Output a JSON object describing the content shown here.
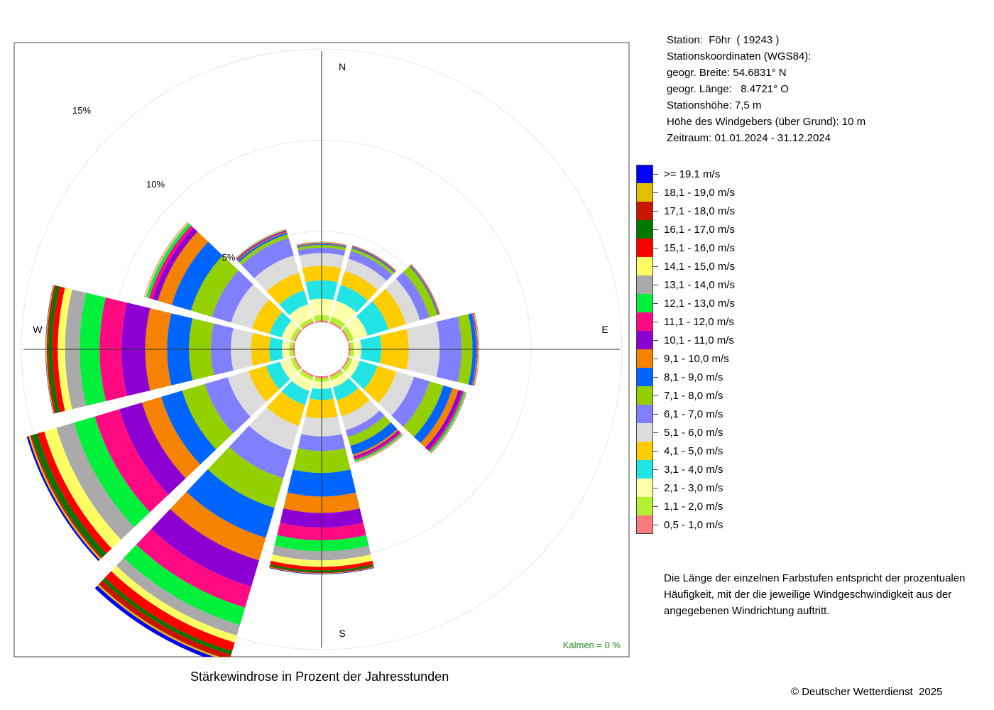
{
  "station": {
    "line1": "Station:  Föhr  ( 19243 )",
    "line2": "Stationskoordinaten (WGS84):",
    "line3": "geogr. Breite: 54.6831° N",
    "line4": "geogr. Länge:   8.4721° O",
    "line5": "Stationshöhe: 7,5 m",
    "line6": "Höhe des Windgebers (über Grund): 10 m",
    "line7": "Zeitraum: 01.01.2024 - 31.12.2024"
  },
  "note": {
    "line1": "Die Länge der einzelnen Farbstufen entspricht der prozentualen",
    "line2": "Häufigkeit, mit der die jeweilige Windgeschwindigkeit aus der",
    "line3": "angegebenen Windrichtung auftritt."
  },
  "copyright": "© Deutscher Wetterdienst  2025",
  "chart_data": {
    "type": "wind-rose",
    "title": "Stärkewindrose in Prozent der Jahresstunden",
    "calm_label": "Kalmen  =  0 %",
    "calm_color": "#228B22",
    "directions_labels": {
      "N": "N",
      "E": "E",
      "S": "S",
      "W": "W"
    },
    "radial_ticks": [
      {
        "value": 5,
        "label": "5%"
      },
      {
        "value": 10,
        "label": "10%"
      },
      {
        "value": 15,
        "label": "15%"
      }
    ],
    "rmax_percent": 15,
    "grid": true,
    "legend_placement": "right",
    "bins": [
      {
        "label": "0,5 - 1,0 m/s",
        "color": "#FF7B7B"
      },
      {
        "label": "1,1 - 2,0 m/s",
        "color": "#B3F032"
      },
      {
        "label": "2,1 - 3,0 m/s",
        "color": "#FFFFAA"
      },
      {
        "label": "3,1 - 4,0 m/s",
        "color": "#22E4E4"
      },
      {
        "label": "4,1 - 5,0 m/s",
        "color": "#FFCC00"
      },
      {
        "label": "5,1 - 6,0 m/s",
        "color": "#DCDCDC"
      },
      {
        "label": "6,1 - 7,0 m/s",
        "color": "#8080FF"
      },
      {
        "label": "7,1 - 8,0 m/s",
        "color": "#94CF00"
      },
      {
        "label": "8,1 - 9,0 m/s",
        "color": "#0064FF"
      },
      {
        "label": "9,1 - 10,0 m/s",
        "color": "#F58200"
      },
      {
        "label": "10,1 - 11,0 m/s",
        "color": "#8C00D2"
      },
      {
        "label": "11,1 - 12,0 m/s",
        "color": "#FF0A82"
      },
      {
        "label": "12,1 - 13,0 m/s",
        "color": "#00F03C"
      },
      {
        "label": "13,1 - 14,0 m/s",
        "color": "#AAAAAA"
      },
      {
        "label": "14,1 - 15,0 m/s",
        "color": "#FFFF64"
      },
      {
        "label": "15,1 - 16,0 m/s",
        "color": "#FF0000"
      },
      {
        "label": "16,1 - 17,0 m/s",
        "color": "#007800"
      },
      {
        "label": "17,1 - 18,0 m/s",
        "color": "#C81400"
      },
      {
        "label": "18,1 - 19,0 m/s",
        "color": "#E1BE00"
      },
      {
        "label": ">= 19.1 m/s",
        "color": "#0000FF"
      }
    ],
    "directions": [
      {
        "angle": 0,
        "values": [
          0.1,
          0.3,
          0.9,
          1.0,
          0.8,
          0.7,
          0.3,
          0.15,
          0.05,
          0.03,
          0.02,
          0.02,
          0.02,
          0.01,
          0.01,
          0.01,
          0.0,
          0.0,
          0.0,
          0.0
        ]
      },
      {
        "angle": 30,
        "values": [
          0.1,
          0.3,
          0.9,
          0.9,
          0.8,
          0.7,
          0.45,
          0.15,
          0.05,
          0.03,
          0.03,
          0.02,
          0.02,
          0.01,
          0.01,
          0.01,
          0.0,
          0.0,
          0.0,
          0.0
        ]
      },
      {
        "angle": 60,
        "values": [
          0.1,
          0.25,
          0.8,
          1.2,
          1.0,
          0.8,
          0.55,
          0.45,
          0.05,
          0.03,
          0.02,
          0.02,
          0.01,
          0.01,
          0.01,
          0.01,
          0.0,
          0.0,
          0.0,
          0.0
        ]
      },
      {
        "angle": 90,
        "values": [
          0.1,
          0.2,
          0.4,
          1.1,
          1.5,
          1.7,
          1.2,
          0.6,
          0.2,
          0.03,
          0.03,
          0.02,
          0.02,
          0.02,
          0.02,
          0.02,
          0.0,
          0.0,
          0.0,
          0.0
        ]
      },
      {
        "angle": 120,
        "values": [
          0.1,
          0.2,
          0.4,
          1.0,
          1.1,
          1.0,
          0.9,
          0.8,
          0.5,
          0.35,
          0.2,
          0.1,
          0.1,
          0.03,
          0.02,
          0.02,
          0.0,
          0.0,
          0.0,
          0.0
        ]
      },
      {
        "angle": 150,
        "values": [
          0.1,
          0.2,
          0.4,
          0.75,
          0.9,
          0.8,
          0.4,
          0.5,
          0.5,
          0.1,
          0.1,
          0.1,
          0.08,
          0.04,
          0.02,
          0.02,
          0.0,
          0.0,
          0.0,
          0.0
        ]
      },
      {
        "angle": 180,
        "values": [
          0.1,
          0.2,
          0.4,
          0.6,
          1.0,
          1.0,
          0.8,
          1.2,
          1.3,
          0.9,
          0.8,
          0.7,
          0.6,
          0.5,
          0.35,
          0.2,
          0.1,
          0.05,
          0.03,
          0.03
        ]
      },
      {
        "angle": 210,
        "values": [
          0.1,
          0.2,
          0.6,
          0.8,
          1.2,
          1.4,
          1.6,
          1.7,
          1.7,
          1.3,
          1.5,
          1.2,
          1.0,
          0.6,
          0.4,
          0.5,
          0.2,
          0.3,
          0.1,
          0.2
        ]
      },
      {
        "angle": 240,
        "values": [
          0.1,
          0.2,
          0.6,
          0.8,
          1.0,
          1.2,
          1.3,
          1.3,
          1.2,
          1.1,
          1.3,
          1.4,
          1.2,
          1.0,
          0.7,
          0.4,
          0.3,
          0.1,
          0.1,
          0.1
        ]
      },
      {
        "angle": 270,
        "values": [
          0.1,
          0.2,
          0.4,
          0.7,
          1.0,
          1.1,
          1.1,
          1.2,
          1.2,
          1.2,
          1.3,
          1.2,
          1.1,
          0.8,
          0.4,
          0.3,
          0.2,
          0.1,
          0.05,
          0.02
        ]
      },
      {
        "angle": 300,
        "values": [
          0.1,
          0.2,
          0.5,
          0.7,
          1.0,
          1.2,
          1.1,
          1.2,
          1.1,
          0.8,
          0.3,
          0.2,
          0.15,
          0.05,
          0.05,
          0.02,
          0.0,
          0.0,
          0.0,
          0.0
        ]
      },
      {
        "angle": 330,
        "values": [
          0.1,
          0.2,
          0.8,
          0.8,
          1.0,
          1.0,
          1.0,
          0.2,
          0.1,
          0.05,
          0.05,
          0.04,
          0.03,
          0.02,
          0.02,
          0.01,
          0.0,
          0.0,
          0.0,
          0.0
        ]
      }
    ]
  }
}
